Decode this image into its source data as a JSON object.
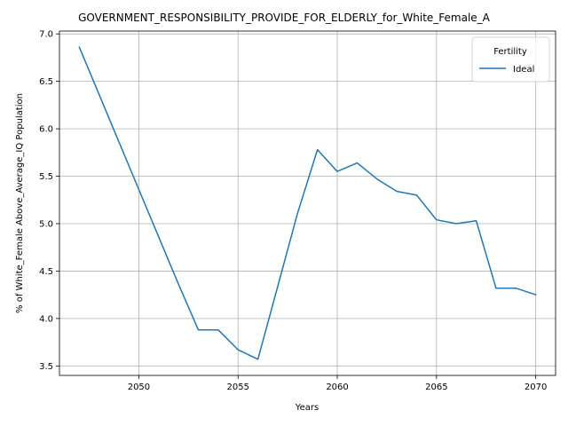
{
  "chart_data": {
    "type": "line",
    "title": "GOVERNMENT_RESPONSIBILITY_PROVIDE_FOR_ELDERLY_for_White_Female_A",
    "xlabel": "Years",
    "ylabel": "% of White_Female Above_Average_IQ Population",
    "xlim": [
      2046,
      2071
    ],
    "ylim": [
      3.4,
      7.03
    ],
    "x_ticks": [
      2050,
      2055,
      2060,
      2065,
      2070
    ],
    "y_ticks": [
      3.5,
      4.0,
      4.5,
      5.0,
      5.5,
      6.0,
      6.5,
      7.0
    ],
    "x_tick_labels": [
      "2050",
      "2055",
      "2060",
      "2065",
      "2070"
    ],
    "y_tick_labels": [
      "3.5",
      "4.0",
      "4.5",
      "5.0",
      "5.5",
      "6.0",
      "6.5",
      "7.0"
    ],
    "grid": true,
    "legend": {
      "title": "Fertility",
      "placement": "top-right"
    },
    "series": [
      {
        "name": "Ideal",
        "color": "#1f77b4",
        "x": [
          2047,
          2048,
          2049,
          2050,
          2051,
          2052,
          2053,
          2054,
          2055,
          2056,
          2057,
          2058,
          2059,
          2060,
          2061,
          2062,
          2063,
          2064,
          2065,
          2066,
          2067,
          2068,
          2069,
          2070
        ],
        "y": [
          6.86,
          6.36,
          5.86,
          5.36,
          4.86,
          4.36,
          3.88,
          3.88,
          3.67,
          3.57,
          4.34,
          5.11,
          5.78,
          5.55,
          5.64,
          5.47,
          5.34,
          5.3,
          5.04,
          5.0,
          5.03,
          4.32,
          4.32,
          4.25
        ]
      }
    ]
  }
}
